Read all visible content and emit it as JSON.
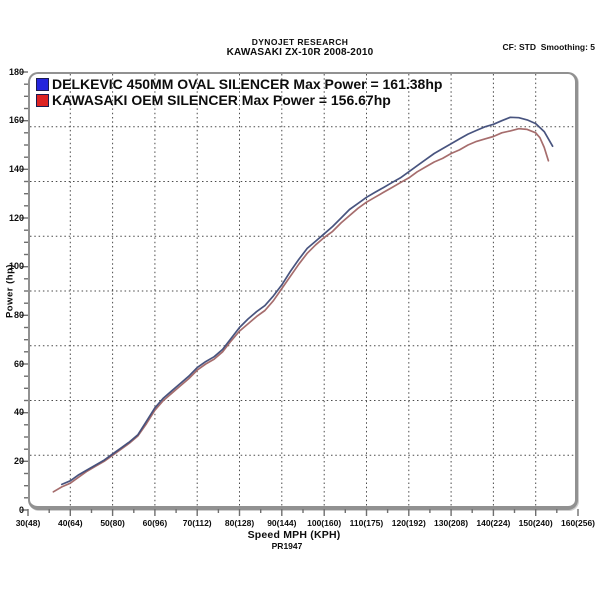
{
  "header": {
    "title_line1": "DYNOJET RESEARCH",
    "title_line2": "KAWASAKI ZX-10R 2008-2010",
    "settings": "CF: STD  Smoothing: 5"
  },
  "chart_data": {
    "type": "line",
    "title": "KAWASAKI ZX-10R 2008-2010",
    "xlabel": "Speed MPH (KPH)",
    "ylabel": "Power (hp)",
    "note": "PR1947",
    "xlim": [
      30,
      160
    ],
    "ylim": [
      0,
      180
    ],
    "grid": true,
    "legend_position": "top-left",
    "y_ticks": [
      0,
      20,
      40,
      60,
      80,
      100,
      120,
      140,
      160,
      180
    ],
    "y_minor_step": 5,
    "h_grid_hp": [
      22.5,
      45,
      67.5,
      90,
      112.5,
      135,
      157.5
    ],
    "v_grid_mph": [
      40,
      50,
      60,
      70,
      80,
      90,
      100,
      110,
      120,
      130,
      140,
      150
    ],
    "x_ticks": [
      {
        "mph": 30,
        "label": "30(48)"
      },
      {
        "mph": 40,
        "label": "40(64)"
      },
      {
        "mph": 50,
        "label": "50(80)"
      },
      {
        "mph": 60,
        "label": "60(96)"
      },
      {
        "mph": 70,
        "label": "70(112)"
      },
      {
        "mph": 80,
        "label": "80(128)"
      },
      {
        "mph": 90,
        "label": "90(144)"
      },
      {
        "mph": 100,
        "label": "100(160)"
      },
      {
        "mph": 110,
        "label": "110(175)"
      },
      {
        "mph": 120,
        "label": "120(192)"
      },
      {
        "mph": 130,
        "label": "130(208)"
      },
      {
        "mph": 140,
        "label": "140(224)"
      },
      {
        "mph": 150,
        "label": "150(240)"
      },
      {
        "mph": 160,
        "label": "160(256)"
      }
    ],
    "series": [
      {
        "id": "delkevic",
        "name": "DELKEVIC 450MM OVAL SILENCER",
        "max_power_hp": 161.38,
        "legend_label": "DELKEVIC 450MM OVAL SILENCER Max Power = 161.38hp",
        "swatch_color": "#2424dd",
        "line_color": "#3e4b78",
        "points": [
          [
            38,
            10.5
          ],
          [
            40,
            12
          ],
          [
            42,
            14.5
          ],
          [
            44,
            16.5
          ],
          [
            46,
            18.5
          ],
          [
            48,
            20.5
          ],
          [
            50,
            23
          ],
          [
            52,
            25.5
          ],
          [
            54,
            28
          ],
          [
            56,
            31
          ],
          [
            58,
            36.5
          ],
          [
            60,
            42
          ],
          [
            62,
            46
          ],
          [
            64,
            49
          ],
          [
            66,
            52
          ],
          [
            68,
            55
          ],
          [
            70,
            58.5
          ],
          [
            72,
            61
          ],
          [
            74,
            63
          ],
          [
            76,
            66
          ],
          [
            78,
            70.5
          ],
          [
            80,
            75
          ],
          [
            82,
            78.5
          ],
          [
            84,
            81.5
          ],
          [
            86,
            84
          ],
          [
            88,
            88
          ],
          [
            90,
            92.5
          ],
          [
            92,
            98
          ],
          [
            94,
            103
          ],
          [
            96,
            107.5
          ],
          [
            98,
            110.5
          ],
          [
            100,
            113.5
          ],
          [
            102,
            116.5
          ],
          [
            104,
            120
          ],
          [
            106,
            123.5
          ],
          [
            108,
            126
          ],
          [
            110,
            128.5
          ],
          [
            112,
            130.5
          ],
          [
            114,
            132.5
          ],
          [
            116,
            134.5
          ],
          [
            118,
            136.5
          ],
          [
            120,
            139
          ],
          [
            122,
            141.5
          ],
          [
            124,
            144
          ],
          [
            126,
            146.5
          ],
          [
            128,
            148.5
          ],
          [
            130,
            150.5
          ],
          [
            132,
            152.5
          ],
          [
            134,
            154.5
          ],
          [
            136,
            156
          ],
          [
            138,
            157.5
          ],
          [
            140,
            158.5
          ],
          [
            142,
            160
          ],
          [
            144,
            161.4
          ],
          [
            146,
            161.2
          ],
          [
            148,
            160.3
          ],
          [
            150,
            158.8
          ],
          [
            152,
            155.5
          ],
          [
            154,
            149.5
          ]
        ]
      },
      {
        "id": "oem",
        "name": "KAWASAKI OEM SILENCER",
        "max_power_hp": 156.67,
        "legend_label": "KAWASAKI OEM SILENCER Max Power = 156.67hp",
        "swatch_color": "#dd2424",
        "line_color": "#a16565",
        "points": [
          [
            36,
            7.5
          ],
          [
            38,
            9.5
          ],
          [
            40,
            11
          ],
          [
            42,
            13.5
          ],
          [
            44,
            16
          ],
          [
            46,
            18
          ],
          [
            48,
            20
          ],
          [
            50,
            22.5
          ],
          [
            52,
            25
          ],
          [
            54,
            27.5
          ],
          [
            56,
            30.5
          ],
          [
            58,
            35.5
          ],
          [
            60,
            41
          ],
          [
            62,
            45
          ],
          [
            64,
            48
          ],
          [
            66,
            51
          ],
          [
            68,
            54
          ],
          [
            70,
            57.5
          ],
          [
            72,
            60
          ],
          [
            74,
            62
          ],
          [
            76,
            65
          ],
          [
            78,
            69.5
          ],
          [
            80,
            73.5
          ],
          [
            82,
            76.5
          ],
          [
            84,
            79.5
          ],
          [
            86,
            82
          ],
          [
            88,
            86
          ],
          [
            90,
            91
          ],
          [
            92,
            96
          ],
          [
            94,
            101
          ],
          [
            96,
            105.5
          ],
          [
            98,
            109
          ],
          [
            100,
            112
          ],
          [
            102,
            114.5
          ],
          [
            104,
            118
          ],
          [
            106,
            121
          ],
          [
            108,
            124
          ],
          [
            110,
            126.5
          ],
          [
            112,
            128.5
          ],
          [
            114,
            130.5
          ],
          [
            116,
            132.5
          ],
          [
            118,
            134.5
          ],
          [
            120,
            136.5
          ],
          [
            122,
            139
          ],
          [
            124,
            141
          ],
          [
            126,
            143
          ],
          [
            128,
            144.5
          ],
          [
            130,
            146.5
          ],
          [
            132,
            148
          ],
          [
            134,
            150
          ],
          [
            136,
            151.5
          ],
          [
            138,
            152.5
          ],
          [
            140,
            153.5
          ],
          [
            142,
            155
          ],
          [
            144,
            155.8
          ],
          [
            146,
            156.7
          ],
          [
            148,
            156.4
          ],
          [
            150,
            155
          ],
          [
            151,
            153
          ],
          [
            152,
            149
          ],
          [
            153,
            143.5
          ]
        ]
      }
    ]
  }
}
